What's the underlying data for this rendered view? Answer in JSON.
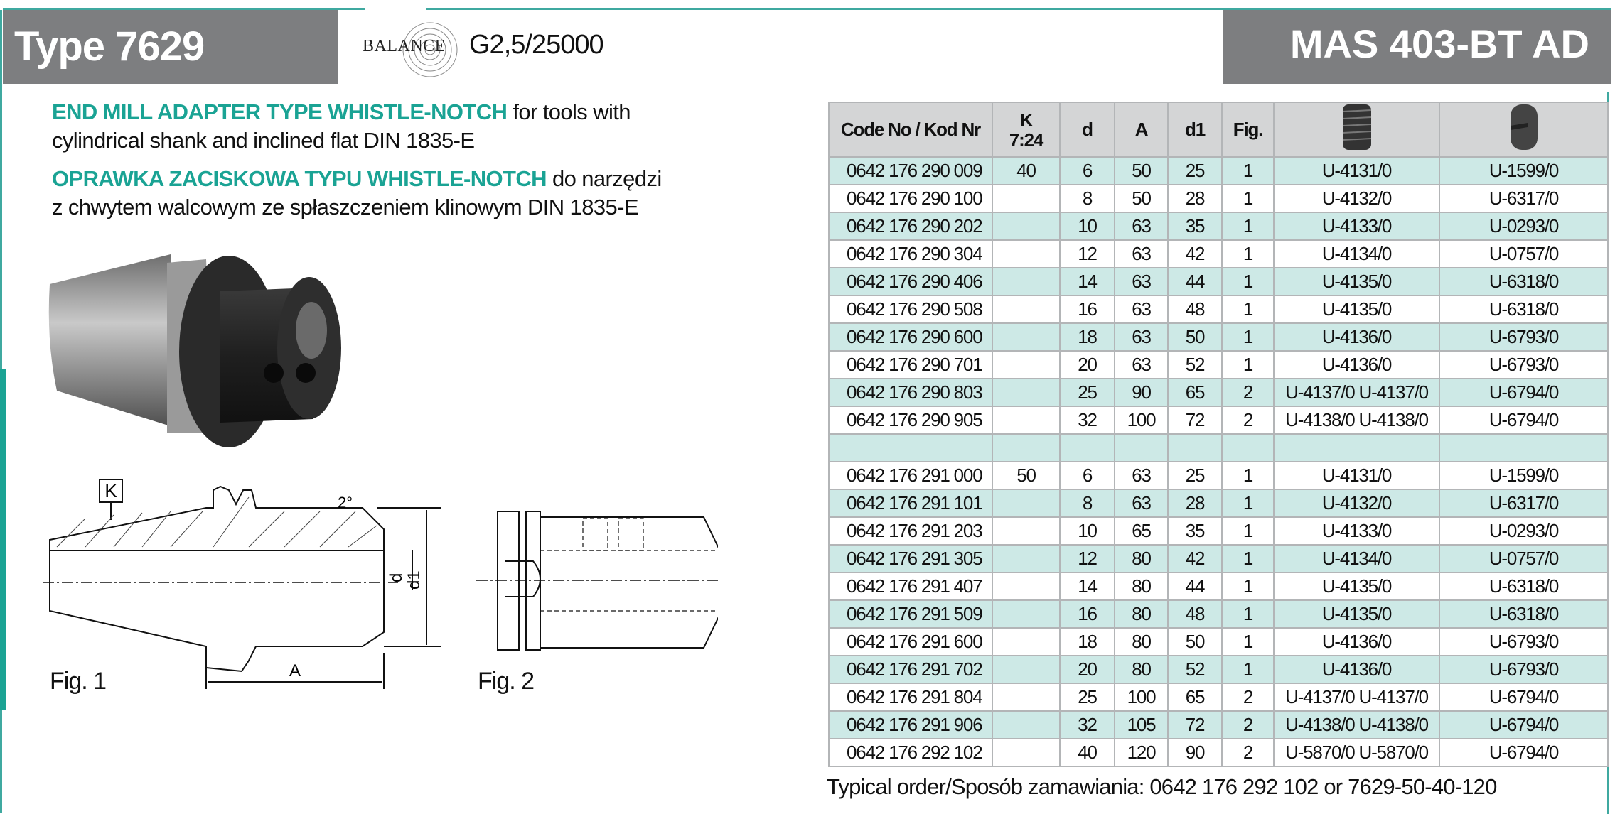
{
  "header": {
    "type_label": "Type 7629",
    "balance_logo": "BALANCE",
    "balance_grade": "G2,5/25000",
    "standard": "MAS 403-BT AD"
  },
  "description": {
    "en_bold": "END MILL ADAPTER TYPE WHISTLE-NOTCH",
    "en_rest_line1": " for tools with",
    "en_line2": "cylindrical shank and inclined flat DIN 1835-E",
    "pl_bold": "OPRAWKA ZACISKOWA TYPU WHISTLE-NOTCH",
    "pl_rest_line1": " do narzędzi",
    "pl_line2": "z chwytem walcowym ze spłaszczeniem klinowym DIN 1835-E"
  },
  "figures": {
    "fig1_label": "Fig. 1",
    "fig2_label": "Fig. 2",
    "dim_K": "K",
    "dim_A": "A",
    "dim_d": "d",
    "dim_d1": "d1",
    "angle": "2°"
  },
  "table": {
    "headers": [
      "Code No / Kod Nr",
      "K 7:24",
      "d",
      "A",
      "d1",
      "Fig.",
      "screw-icon",
      "plug-screw-icon"
    ],
    "rows": [
      [
        "0642 176 290 009",
        "40",
        "6",
        "50",
        "25",
        "1",
        "U-4131/0",
        "U-1599/0"
      ],
      [
        "0642 176 290 100",
        "",
        "8",
        "50",
        "28",
        "1",
        "U-4132/0",
        "U-6317/0"
      ],
      [
        "0642 176 290 202",
        "",
        "10",
        "63",
        "35",
        "1",
        "U-4133/0",
        "U-0293/0"
      ],
      [
        "0642 176 290 304",
        "",
        "12",
        "63",
        "42",
        "1",
        "U-4134/0",
        "U-0757/0"
      ],
      [
        "0642 176 290 406",
        "",
        "14",
        "63",
        "44",
        "1",
        "U-4135/0",
        "U-6318/0"
      ],
      [
        "0642 176 290 508",
        "",
        "16",
        "63",
        "48",
        "1",
        "U-4135/0",
        "U-6318/0"
      ],
      [
        "0642 176 290 600",
        "",
        "18",
        "63",
        "50",
        "1",
        "U-4136/0",
        "U-6793/0"
      ],
      [
        "0642 176 290 701",
        "",
        "20",
        "63",
        "52",
        "1",
        "U-4136/0",
        "U-6793/0"
      ],
      [
        "0642 176 290 803",
        "",
        "25",
        "90",
        "65",
        "2",
        "U-4137/0 U-4137/0",
        "U-6794/0"
      ],
      [
        "0642 176 290 905",
        "",
        "32",
        "100",
        "72",
        "2",
        "U-4138/0 U-4138/0",
        "U-6794/0"
      ],
      [
        "",
        "",
        "",
        "",
        "",
        "",
        "",
        ""
      ],
      [
        "0642 176 291 000",
        "50",
        "6",
        "63",
        "25",
        "1",
        "U-4131/0",
        "U-1599/0"
      ],
      [
        "0642 176 291 101",
        "",
        "8",
        "63",
        "28",
        "1",
        "U-4132/0",
        "U-6317/0"
      ],
      [
        "0642 176 291 203",
        "",
        "10",
        "65",
        "35",
        "1",
        "U-4133/0",
        "U-0293/0"
      ],
      [
        "0642 176 291 305",
        "",
        "12",
        "80",
        "42",
        "1",
        "U-4134/0",
        "U-0757/0"
      ],
      [
        "0642 176 291 407",
        "",
        "14",
        "80",
        "44",
        "1",
        "U-4135/0",
        "U-6318/0"
      ],
      [
        "0642 176 291 509",
        "",
        "16",
        "80",
        "48",
        "1",
        "U-4135/0",
        "U-6318/0"
      ],
      [
        "0642 176 291 600",
        "",
        "18",
        "80",
        "50",
        "1",
        "U-4136/0",
        "U-6793/0"
      ],
      [
        "0642 176 291 702",
        "",
        "20",
        "80",
        "52",
        "1",
        "U-4136/0",
        "U-6793/0"
      ],
      [
        "0642 176 291 804",
        "",
        "25",
        "100",
        "65",
        "2",
        "U-4137/0 U-4137/0",
        "U-6794/0"
      ],
      [
        "0642 176 291 906",
        "",
        "32",
        "105",
        "72",
        "2",
        "U-4138/0 U-4138/0",
        "U-6794/0"
      ],
      [
        "0642 176 292 102",
        "",
        "40",
        "120",
        "90",
        "2",
        "U-5870/0 U-5870/0",
        "U-6794/0"
      ]
    ]
  },
  "typical_order": "Typical order/Sposób zamawiania: 0642 176 292 102 or 7629-50-40-120",
  "colors": {
    "accent": "#1aa394",
    "header_gray": "#7d7e80",
    "row_alt": "#cde9e6",
    "table_head": "#d4d5d6"
  }
}
